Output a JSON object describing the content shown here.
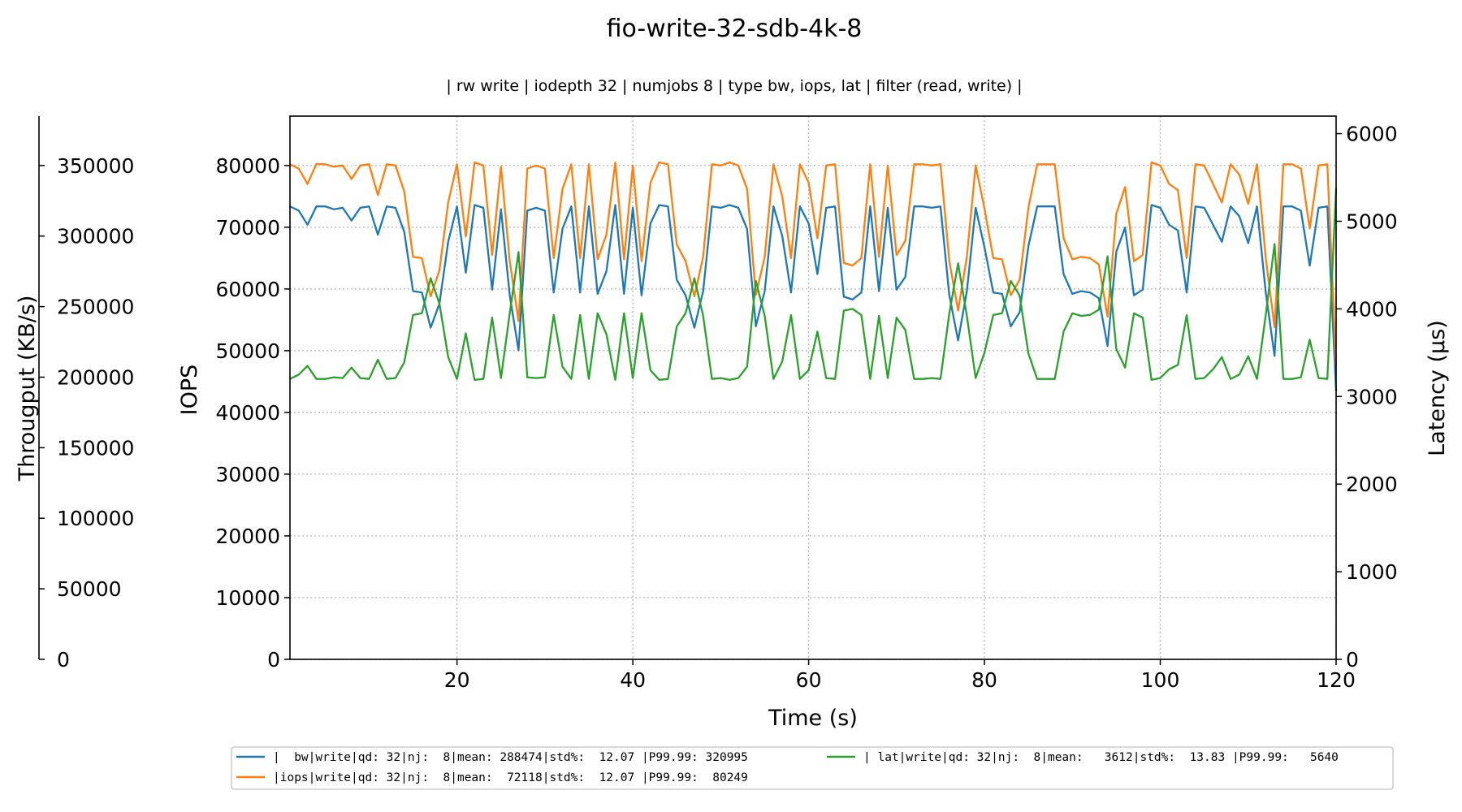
{
  "colors": {
    "bw": "#1f77b4",
    "iops": "#ff7f0e",
    "lat": "#2ca02c",
    "grid": "#b0b0b0"
  },
  "chart_data": {
    "type": "line",
    "title": "fio-write-32-sdb-4k-8",
    "subtitle": "| rw write | iodepth 32 | numjobs 8 | type bw, iops, lat | filter (read, write) |",
    "xlabel": "Time (s)",
    "ylabel_iops": "IOPS",
    "ylabel_bw": "Througput (KB/s)",
    "ylabel_lat": "Latency (µs)",
    "xlim": [
      1,
      120
    ],
    "ylim_iops": [
      0,
      88000
    ],
    "ylim_bw": [
      0,
      385000
    ],
    "ylim_lat": [
      0,
      6200
    ],
    "xticks": [
      20,
      40,
      60,
      80,
      100,
      120
    ],
    "yticks_iops": [
      0,
      10000,
      20000,
      30000,
      40000,
      50000,
      60000,
      70000,
      80000
    ],
    "yticks_bw": [
      0,
      50000,
      100000,
      150000,
      200000,
      250000,
      300000,
      350000
    ],
    "yticks_lat": [
      0,
      1000,
      2000,
      3000,
      4000,
      5000,
      6000
    ],
    "grid": true,
    "legend_position": "bottom",
    "x": [
      1,
      2,
      3,
      4,
      5,
      6,
      7,
      8,
      9,
      10,
      11,
      12,
      13,
      14,
      15,
      16,
      17,
      18,
      19,
      20,
      21,
      22,
      23,
      24,
      25,
      26,
      27,
      28,
      29,
      30,
      31,
      32,
      33,
      34,
      35,
      36,
      37,
      38,
      39,
      40,
      41,
      42,
      43,
      44,
      45,
      46,
      47,
      48,
      49,
      50,
      51,
      52,
      53,
      54,
      55,
      56,
      57,
      58,
      59,
      60,
      61,
      62,
      63,
      64,
      65,
      66,
      67,
      68,
      69,
      70,
      71,
      72,
      73,
      74,
      75,
      76,
      77,
      78,
      79,
      80,
      81,
      82,
      83,
      84,
      85,
      86,
      87,
      88,
      89,
      90,
      91,
      92,
      93,
      94,
      95,
      96,
      97,
      98,
      99,
      100,
      101,
      102,
      103,
      104,
      105,
      106,
      107,
      108,
      109,
      110,
      111,
      112,
      113,
      114,
      115,
      116,
      117,
      118,
      119,
      120
    ],
    "series": [
      {
        "key": "bw",
        "axis": "bw",
        "legend": "|  bw|write|qd: 32|nj:  8|mean: 288474|std%:  12.07 |P99.99: 320995",
        "values": [
          321000,
          318000,
          308000,
          321000,
          321000,
          319000,
          320000,
          311000,
          320000,
          321000,
          301000,
          321000,
          320000,
          303000,
          261000,
          260000,
          235000,
          252000,
          296000,
          321000,
          274000,
          322000,
          320000,
          262000,
          319000,
          258000,
          219000,
          318000,
          320000,
          318000,
          260000,
          305000,
          321000,
          260000,
          321000,
          259000,
          275000,
          322000,
          259000,
          320000,
          258000,
          309000,
          322000,
          321000,
          269000,
          258000,
          235000,
          261000,
          321000,
          320000,
          322000,
          320000,
          305000,
          236000,
          261000,
          321000,
          300000,
          260000,
          321000,
          309000,
          273000,
          320000,
          321000,
          257000,
          255000,
          260000,
          321000,
          261000,
          320000,
          262000,
          271000,
          321000,
          321000,
          320000,
          321000,
          258000,
          226000,
          261000,
          320000,
          292000,
          260000,
          259000,
          236000,
          246000,
          293000,
          321000,
          321000,
          321000,
          273000,
          259000,
          261000,
          260000,
          256000,
          222000,
          289000,
          306000,
          258000,
          262000,
          322000,
          320000,
          308000,
          304000,
          260000,
          321000,
          320000,
          308000,
          296000,
          321000,
          314000,
          295000,
          321000,
          260000,
          215000,
          321000,
          321000,
          318000,
          279000,
          320000,
          321000,
          190000
        ]
      },
      {
        "key": "iops",
        "axis": "iops",
        "legend": "|iops|write|qd: 32|nj:  8|mean:  72118|std%:  12.07 |P99.99:  80249",
        "values": [
          80200,
          79500,
          77000,
          80250,
          80200,
          79800,
          80000,
          77800,
          80000,
          80200,
          75200,
          80200,
          80000,
          75800,
          65200,
          65000,
          58800,
          63000,
          74000,
          80200,
          68500,
          80500,
          80000,
          65500,
          79800,
          64500,
          54800,
          79500,
          80000,
          79500,
          65000,
          76200,
          80200,
          65000,
          80200,
          64800,
          68800,
          80500,
          64800,
          80000,
          64500,
          77200,
          80500,
          80200,
          67200,
          64500,
          58800,
          65200,
          80200,
          80000,
          80500,
          80000,
          76200,
          59000,
          65200,
          80200,
          75000,
          65000,
          80200,
          77200,
          68200,
          80000,
          80200,
          64200,
          63800,
          65000,
          80200,
          65200,
          80000,
          65500,
          67800,
          80200,
          80200,
          80000,
          80200,
          64500,
          56500,
          65200,
          80000,
          73000,
          65000,
          64800,
          59000,
          61500,
          73200,
          80200,
          80200,
          80200,
          68200,
          64800,
          65200,
          65000,
          64000,
          55500,
          72200,
          76500,
          64500,
          65500,
          80500,
          80000,
          77000,
          76000,
          65000,
          80200,
          80000,
          77000,
          74000,
          80200,
          78500,
          73800,
          80200,
          65000,
          53800,
          80200,
          80200,
          79500,
          69800,
          80000,
          80200,
          47500
        ]
      },
      {
        "key": "lat",
        "axis": "lat",
        "legend": "| lat|write|qd: 32|nj:  8|mean:   3612|std%:  13.83 |P99.99:   5640",
        "values": [
          3200,
          3250,
          3350,
          3200,
          3200,
          3220,
          3210,
          3330,
          3210,
          3200,
          3420,
          3200,
          3210,
          3390,
          3930,
          3950,
          4350,
          4060,
          3450,
          3200,
          3720,
          3190,
          3200,
          3900,
          3210,
          3950,
          4650,
          3220,
          3210,
          3220,
          3930,
          3340,
          3200,
          3930,
          3200,
          3950,
          3710,
          3190,
          3950,
          3210,
          3950,
          3300,
          3190,
          3200,
          3800,
          3950,
          4350,
          3920,
          3200,
          3210,
          3190,
          3210,
          3340,
          4320,
          3920,
          3200,
          3400,
          3930,
          3200,
          3300,
          3740,
          3210,
          3200,
          3980,
          4000,
          3930,
          3200,
          3920,
          3210,
          3900,
          3760,
          3200,
          3200,
          3210,
          3200,
          3950,
          4520,
          3920,
          3210,
          3500,
          3930,
          3950,
          4320,
          4150,
          3490,
          3200,
          3200,
          3200,
          3740,
          3950,
          3920,
          3930,
          3990,
          4600,
          3540,
          3330,
          3950,
          3900,
          3190,
          3210,
          3310,
          3360,
          3930,
          3200,
          3210,
          3310,
          3450,
          3200,
          3250,
          3460,
          3200,
          3930,
          4740,
          3200,
          3200,
          3220,
          3650,
          3210,
          3200,
          5380
        ]
      }
    ]
  }
}
